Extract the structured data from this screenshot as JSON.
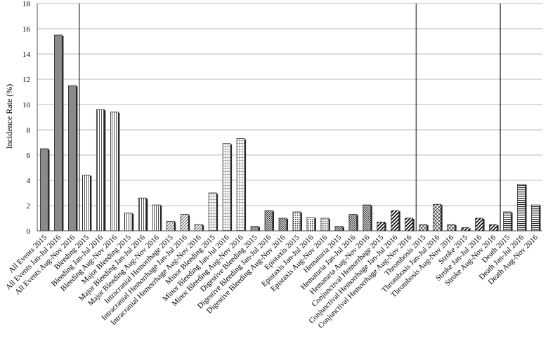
{
  "chart_data": {
    "type": "bar",
    "ylabel": "Incidence  Rate (%)",
    "xlabel": "",
    "title": "",
    "ylim": [
      0,
      18
    ],
    "yticks": [
      0,
      2,
      4,
      6,
      8,
      10,
      12,
      14,
      16,
      18
    ],
    "grid": true,
    "legend": "none",
    "group_separators_after": [
      "All Events Aug-Nov 2016",
      "Conjunctival Hemorrhage Aug-Nov 2016",
      "Stroke Aug-Nov 2016"
    ],
    "categories": [
      "All Events 2015",
      "All Events Jan-Jul 2016",
      "All Events Aug-Nov 2016",
      "Bleeding 2015",
      "Bleeding Jan-Jul 2016",
      "Bleeding Aug-Nov 2016",
      "Major Bleeding 2015",
      "Major Bleeding Jan-Jul 2016",
      "Major Bleeding Aug-Nov 2016",
      "Intracranial Hemorrhage 2015",
      "Intracranial Hemorrhage Jan-Jul 2016",
      "Intracranial Hemorrhage Aug-Nov 2016",
      "Minor Bleeding 2015",
      "Minor Bleeding Jan-Jul 2016",
      "Minor Bleeding Aug-Nov 2016",
      "Digestive Bleeding 2015",
      "Digestive Bleeding Jan-Jul 2016",
      "Digestive Bleeding Aug-Nov 2016",
      "Epistaxis 2015",
      "Epistaxis Jan-Jul 2016",
      "Epistaxis Aug-Nov 2016",
      "Hematuria 2015",
      "Hematuria Jan-Jul 2016",
      "Hematuria Aug-Nov 2016",
      "Conjunctival Hemorrhage 2015",
      "Conjunctival Hemorrhage Jan-Jul 2016",
      "Conjunctival Hemorrhage Aug-Nov 2016",
      "Thrombosis 2015",
      "Thrombosis Jan-Jul 2016",
      "Thrombosis Aug-Nov 2016",
      "Stroke 2015",
      "Stroke Jan-Jul 2016",
      "Stroke Aug-Nov 2016",
      "Death 2015",
      "Death Jan-Jul 2016",
      "Death Aug-Nov 2016"
    ],
    "values": [
      6.5,
      15.5,
      11.5,
      4.4,
      9.6,
      9.4,
      1.4,
      2.6,
      2.05,
      0.75,
      1.3,
      0.5,
      3.0,
      6.9,
      7.3,
      0.35,
      1.6,
      1.0,
      1.5,
      1.05,
      1.0,
      0.35,
      1.3,
      2.05,
      0.7,
      1.6,
      1.0,
      0.5,
      2.1,
      0.5,
      0.25,
      1.0,
      0.5,
      1.5,
      3.7,
      2.05
    ],
    "patterns": [
      "solid-gray",
      "solid-gray",
      "solid-gray",
      "vstripe",
      "vstripe",
      "vstripe",
      "vstripe",
      "vstripe",
      "vstripe",
      "diag-light",
      "diag-light",
      "diag-light",
      "grid",
      "grid",
      "grid",
      "diag-dark",
      "diag-dark",
      "diag-dark",
      "dots",
      "dots",
      "dots",
      "diag-dark",
      "diag-dark",
      "diag-dark",
      "diag-bold",
      "diag-bold",
      "diag-bold",
      "crosshatch",
      "crosshatch",
      "crosshatch",
      "diag-bold",
      "diag-bold",
      "diag-bold",
      "hstripe",
      "hstripe",
      "hstripe"
    ]
  }
}
